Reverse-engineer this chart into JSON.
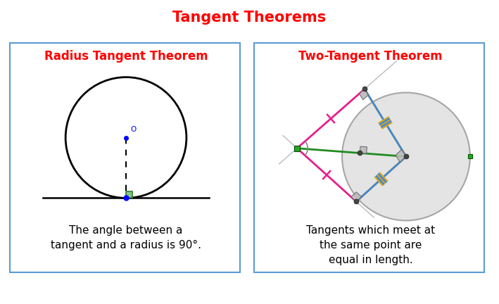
{
  "title": "Tangent Theorems",
  "title_color": "#FF0000",
  "title_fontsize": 15,
  "left_title": "Radius Tangent Theorem",
  "right_title": "Two-Tangent Theorem",
  "subtitle_color": "#FF0000",
  "subtitle_fontsize": 12,
  "left_text": "The angle between a\ntangent and a radius is 90°.",
  "right_text": "Tangents which meet at\nthe same point are\nequal in length.",
  "text_fontsize": 11,
  "bg_color": "#FFFFFF",
  "box_edge_color": "#5B9BD5",
  "pink_color": "#E91E8C",
  "yellow_color": "#DAA520",
  "blue_color": "#4488CC",
  "green_color": "#228B22",
  "gray_color": "#AAAAAA",
  "dot_gray": "#555555",
  "dot_green": "#22AA22",
  "sq_green_edge": "#2E7D32",
  "sq_green_fill": "#81C784"
}
